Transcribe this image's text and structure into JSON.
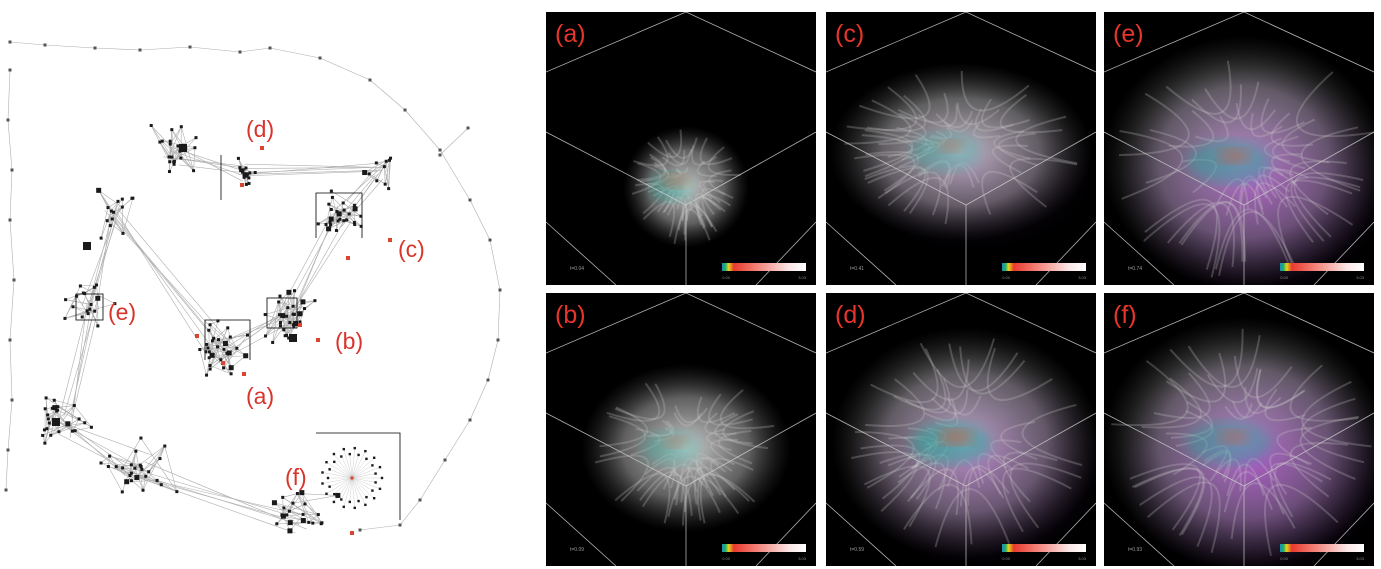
{
  "graph": {
    "labels": [
      {
        "key": "d",
        "text": "(d)"
      },
      {
        "key": "c",
        "text": "(c)"
      },
      {
        "key": "e",
        "text": "(e)"
      },
      {
        "key": "b",
        "text": "(b)"
      },
      {
        "key": "a",
        "text": "(a)"
      },
      {
        "key": "f",
        "text": "(f)"
      }
    ],
    "colors": {
      "node": "#1a1a1a",
      "highlight": "#d9452e",
      "edge": "#9a9a9a",
      "label": "#d9342b"
    }
  },
  "panels": [
    {
      "label": "(a)",
      "time": "t=0.04",
      "cb_min": "0.00",
      "cb_max": "3.03"
    },
    {
      "label": "(c)",
      "time": "t=0.41",
      "cb_min": "0.00",
      "cb_max": "3.03"
    },
    {
      "label": "(e)",
      "time": "t=0.74",
      "cb_min": "0.00",
      "cb_max": "3.03"
    },
    {
      "label": "(b)",
      "time": "t=0.09",
      "cb_min": "0.00",
      "cb_max": "3.03"
    },
    {
      "label": "(d)",
      "time": "t=0.59",
      "cb_min": "0.00",
      "cb_max": "3.03"
    },
    {
      "label": "(f)",
      "time": "t=0.93",
      "cb_min": "0.00",
      "cb_max": "3.03"
    }
  ]
}
